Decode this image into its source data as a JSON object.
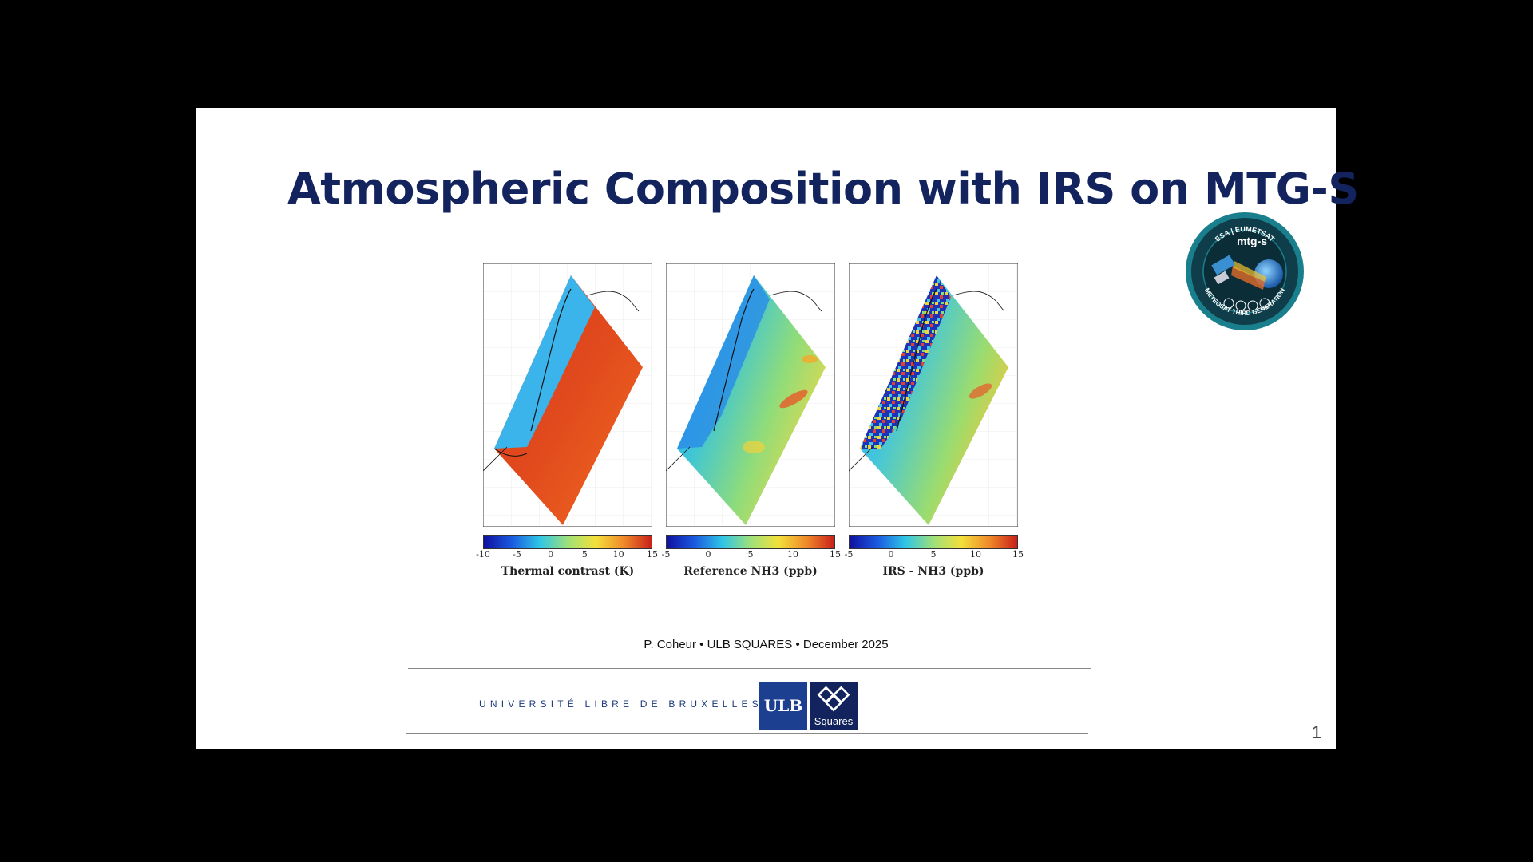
{
  "slide": {
    "title": "Atmospheric Composition with IRS on MTG-S",
    "badge": {
      "top_text": "ESA | EUMETSAT",
      "center_text": "mtg-s",
      "bottom_text": "METEOSAT THIRD GENERATION",
      "colors": {
        "ring": "#0f3d4a",
        "rim": "#1a7f8c"
      }
    },
    "maps": [
      {
        "label": "Thermal contrast (K)",
        "ticks": [
          "-10",
          "-5",
          "0",
          "5",
          "10",
          "15"
        ]
      },
      {
        "label": "Reference NH3 (ppb)",
        "ticks": [
          "-5",
          "0",
          "5",
          "10",
          "15"
        ]
      },
      {
        "label": "IRS - NH3 (ppb)",
        "ticks": [
          "-5",
          "0",
          "5",
          "10",
          "15"
        ]
      }
    ],
    "footer": {
      "credit": "P. Coheur • ULB SQUARES • December 2025",
      "university": "UNIVERSITÉ LIBRE DE BRUXELLES",
      "ulb_logo_text": "ULB",
      "squares_logo_text": "Squares"
    },
    "page_number": "1"
  }
}
